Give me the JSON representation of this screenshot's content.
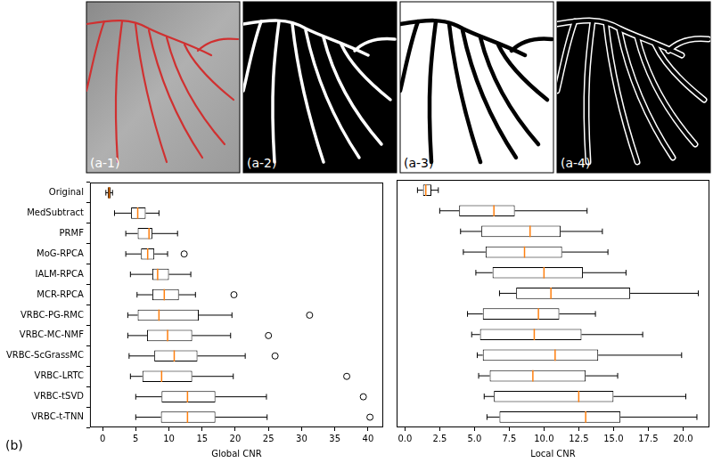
{
  "panels": {
    "a_labels": [
      "(a-1)",
      "(a-2)",
      "(a-3)",
      "(a-4)"
    ],
    "b_label": "(b)"
  },
  "chart_data": [
    {
      "type": "box",
      "orientation": "horizontal",
      "x_label": "Global CNR",
      "color": "#000000",
      "grid": false,
      "categories": [
        "Original",
        "MedSubtract",
        "PRMF",
        "MoG-RPCA",
        "IALM-RPCA",
        "MCR-RPCA",
        "VRBC-PG-RMC",
        "VRBC-MC-NMF",
        "VRBC-ScGrassMC",
        "VRBC-LRTC",
        "VRBC-tSVD",
        "VRBC-t-TNN"
      ],
      "whisker_low": [
        0.5,
        1.8,
        3.5,
        3.5,
        4.2,
        5.2,
        3.8,
        3.8,
        4.0,
        4.2,
        5.0,
        5.0
      ],
      "q1": [
        0.8,
        4.3,
        5.3,
        5.8,
        7.5,
        7.5,
        5.3,
        6.7,
        7.8,
        6.0,
        8.9,
        8.8
      ],
      "median": [
        1.0,
        5.3,
        7.0,
        6.8,
        8.3,
        9.3,
        8.5,
        9.8,
        10.8,
        8.9,
        12.8,
        12.8
      ],
      "q3": [
        1.2,
        6.5,
        7.5,
        7.8,
        10.0,
        11.5,
        14.5,
        13.5,
        14.3,
        13.5,
        17.0,
        17.0
      ],
      "whisker_high": [
        1.5,
        8.5,
        11.3,
        9.8,
        13.3,
        14.0,
        19.5,
        19.3,
        21.5,
        19.7,
        24.7,
        24.8
      ],
      "outliers": [
        [],
        [],
        [],
        [
          12.3
        ],
        [],
        [
          19.8
        ],
        [
          31.2
        ],
        [
          25.0
        ],
        [
          26.0
        ],
        [
          36.8
        ],
        [
          39.3
        ],
        [
          40.3
        ]
      ],
      "xlim": [
        -1.9,
        42.3
      ],
      "xticks": [
        0,
        5,
        10,
        15,
        20,
        25,
        30,
        35,
        40
      ]
    },
    {
      "type": "box",
      "orientation": "horizontal",
      "x_label": "Local CNR",
      "color": "#000000",
      "grid": false,
      "tick_labels": "x",
      "categories": [
        "Original",
        "MedSubtract",
        "PRMF",
        "MoG-RPCA",
        "IALM-RPCA",
        "MCR-RPCA",
        "VRBC-PG-RMC",
        "VRBC-MC-NMF",
        "VRBC-ScGrassMC",
        "VRBC-LRTC",
        "VRBC-tSVD",
        "VRBC-t-TNN"
      ],
      "whisker_low": [
        0.9,
        2.5,
        4.0,
        4.2,
        5.1,
        6.8,
        4.5,
        4.8,
        5.2,
        5.3,
        5.7,
        5.9
      ],
      "q1": [
        1.3,
        3.9,
        5.5,
        5.8,
        6.3,
        8.0,
        5.6,
        5.4,
        5.6,
        6.1,
        6.4,
        6.8
      ],
      "median": [
        1.5,
        6.4,
        9.0,
        8.6,
        10.0,
        10.5,
        9.6,
        9.3,
        10.8,
        9.2,
        12.5,
        13.0
      ],
      "q3": [
        1.9,
        7.9,
        11.2,
        11.3,
        12.8,
        16.2,
        11.1,
        12.7,
        13.9,
        13.0,
        15.0,
        15.5
      ],
      "whisker_high": [
        2.4,
        13.1,
        14.2,
        14.6,
        15.9,
        21.1,
        13.7,
        17.1,
        19.9,
        15.3,
        20.2,
        21.0
      ],
      "outliers": [
        [],
        [],
        [],
        [],
        [],
        [],
        [],
        [],
        [],
        [],
        [],
        []
      ],
      "xlim": [
        -0.6,
        21.9
      ],
      "xticks": [
        {
          "value": 0,
          "label": "0.0"
        },
        2.5,
        {
          "value": 5,
          "label": "5.0"
        },
        7.5,
        {
          "value": 10,
          "label": "10.0"
        },
        12.5,
        {
          "value": 15,
          "label": "15.0"
        },
        17.5,
        {
          "value": 20,
          "label": "20.0"
        }
      ]
    }
  ]
}
